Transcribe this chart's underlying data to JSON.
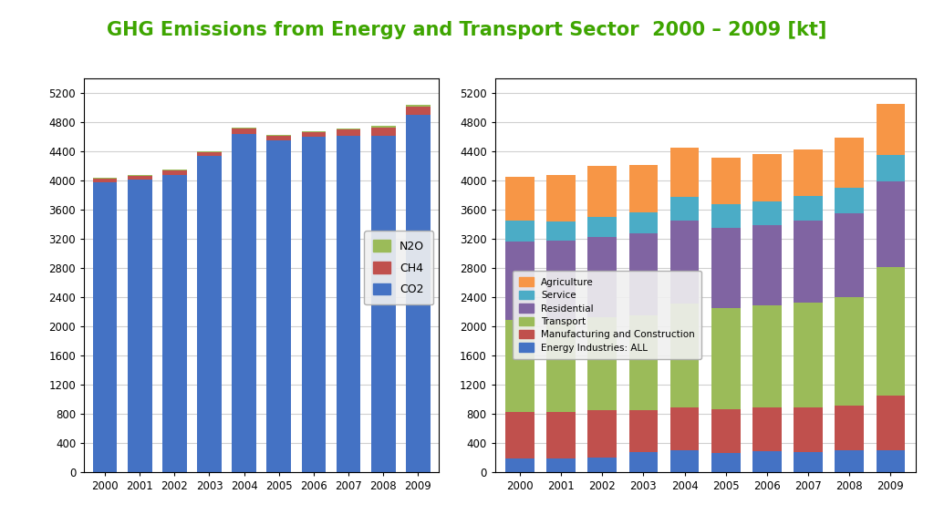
{
  "title": "GHG Emissions from Energy and Transport Sector  2000 – 2009 [kt]",
  "title_color": "#3EA500",
  "years": [
    "2000",
    "2001",
    "2002",
    "2003",
    "2004",
    "2005",
    "2006",
    "2007",
    "2008",
    "2009"
  ],
  "left": {
    "CO2": [
      3980,
      4020,
      4080,
      4340,
      4640,
      4550,
      4600,
      4620,
      4620,
      4900
    ],
    "CH4": [
      55,
      50,
      60,
      55,
      75,
      70,
      65,
      80,
      110,
      120
    ],
    "N2O": [
      10,
      10,
      10,
      15,
      15,
      15,
      15,
      15,
      20,
      25
    ],
    "colors": {
      "CO2": "#4472C4",
      "CH4": "#C0504D",
      "N2O": "#9BBB59"
    },
    "ylim": [
      0,
      5400
    ],
    "yticks": [
      0,
      400,
      800,
      1200,
      1600,
      2000,
      2400,
      2800,
      3200,
      3600,
      4000,
      4400,
      4800,
      5200
    ]
  },
  "right": {
    "Energy Industries: ALL": [
      190,
      195,
      200,
      280,
      310,
      270,
      290,
      280,
      300,
      310
    ],
    "Manufacturing and Construction": [
      640,
      630,
      650,
      580,
      580,
      600,
      600,
      610,
      620,
      750
    ],
    "Transport": [
      1260,
      1270,
      1280,
      1300,
      1430,
      1380,
      1400,
      1440,
      1490,
      1760
    ],
    "Residential": [
      1080,
      1080,
      1100,
      1120,
      1140,
      1100,
      1100,
      1120,
      1140,
      1170
    ],
    "Service": [
      280,
      270,
      280,
      290,
      320,
      330,
      330,
      340,
      360,
      360
    ],
    "Agriculture": [
      600,
      640,
      690,
      650,
      680,
      640,
      650,
      640,
      680,
      700
    ],
    "colors": {
      "Energy Industries: ALL": "#4472C4",
      "Manufacturing and Construction": "#C0504D",
      "Transport": "#9BBB59",
      "Residential": "#8064A2",
      "Service": "#4BACC6",
      "Agriculture": "#F79646"
    },
    "ylim": [
      0,
      5400
    ],
    "yticks": [
      0,
      400,
      800,
      1200,
      1600,
      2000,
      2400,
      2800,
      3200,
      3600,
      4000,
      4400,
      4800,
      5200
    ]
  },
  "background": "#ffffff",
  "border_color": "#000000",
  "grid_color": "#d0d0d0"
}
